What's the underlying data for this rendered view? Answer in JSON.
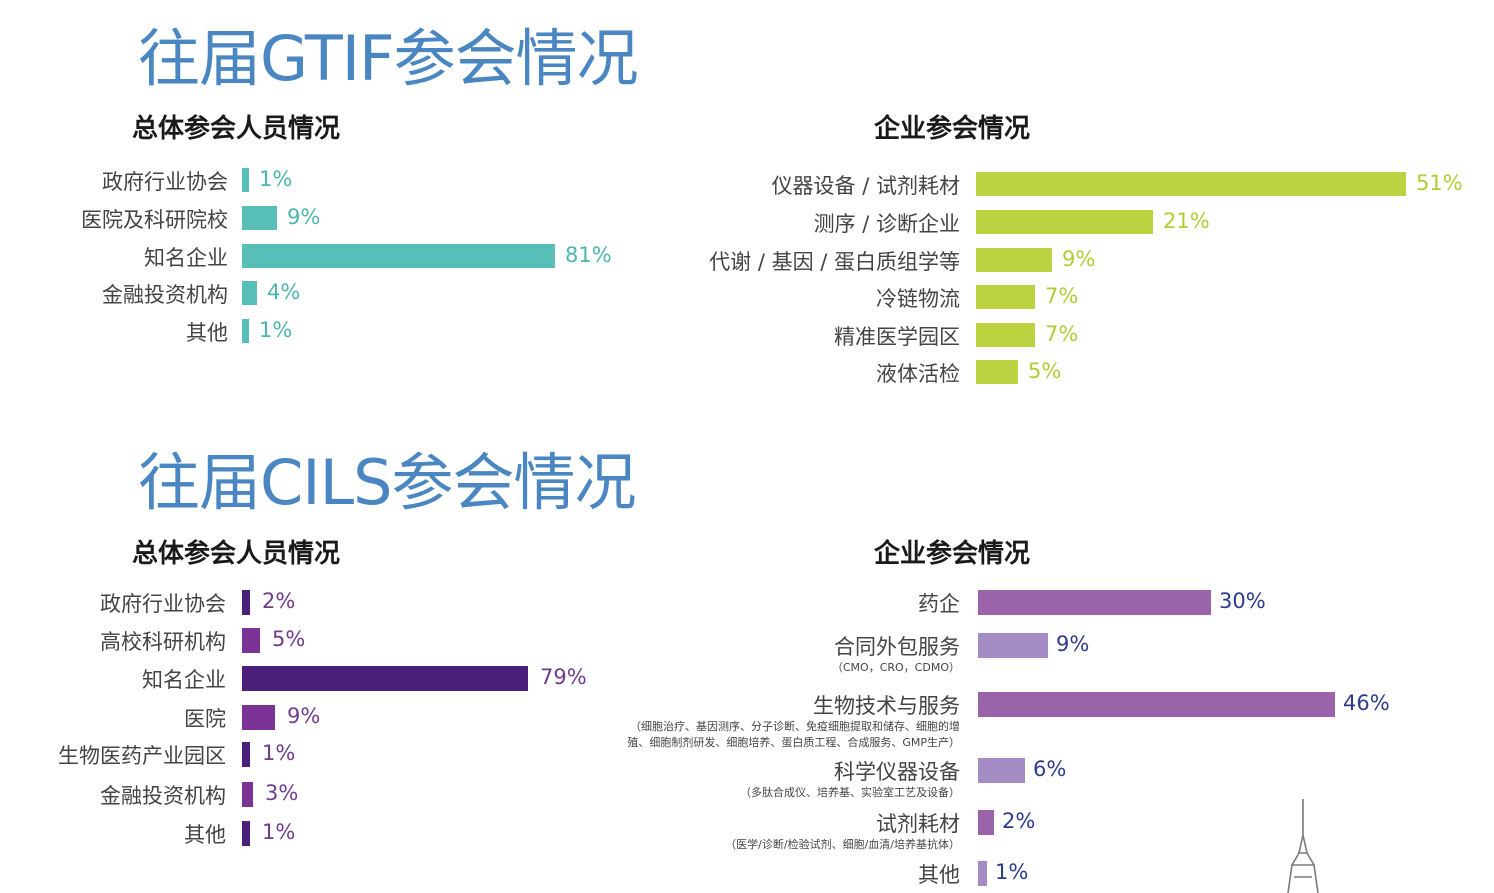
{
  "sections": {
    "gtif_title": "往届GTIF参会情况",
    "cils_title": "往届CILS参会情况"
  },
  "chart_data": [
    {
      "type": "bar",
      "orientation": "horizontal",
      "title": "总体参会人员情况",
      "categories": [
        "政府行业协会",
        "医院及科研院校",
        "知名企业",
        "金融投资机构",
        "其他"
      ],
      "values": [
        1,
        9,
        81,
        4,
        1
      ],
      "value_labels": [
        "1%",
        "9%",
        "81%",
        "4%",
        "1%"
      ],
      "unit": "%",
      "bar_color": "#57bfb7",
      "value_color": "#4db5ad"
    },
    {
      "type": "bar",
      "orientation": "horizontal",
      "title": "企业参会情况",
      "categories": [
        "仪器设备 / 试剂耗材",
        "测序 / 诊断企业",
        "代谢 / 基因 / 蛋白质组学等",
        "冷链物流",
        "精准医学园区",
        "液体活检"
      ],
      "values": [
        51,
        21,
        9,
        7,
        7,
        5
      ],
      "value_labels": [
        "51%",
        "21%",
        "9%",
        "7%",
        "7%",
        "5%"
      ],
      "unit": "%",
      "bar_color": "#bcd241",
      "value_color": "#b3cb37"
    },
    {
      "type": "bar",
      "orientation": "horizontal",
      "title": "总体参会人员情况",
      "categories": [
        "政府行业协会",
        "高校科研机构",
        "知名企业",
        "医院",
        "生物医药产业园区",
        "金融投资机构",
        "其他"
      ],
      "values": [
        2,
        5,
        79,
        9,
        1,
        3,
        1
      ],
      "value_labels": [
        "2%",
        "5%",
        "79%",
        "9%",
        "1%",
        "3%",
        "1%"
      ],
      "unit": "%",
      "bar_colors": [
        "#4b1f7a",
        "#7b3496",
        "#4b1f7a",
        "#7b3496",
        "#4b1f7a",
        "#7b3496",
        "#4b1f7a"
      ],
      "value_color": "#6f3c8e"
    },
    {
      "type": "bar",
      "orientation": "horizontal",
      "title": "企业参会情况",
      "categories": [
        "药企",
        "合同外包服务",
        "生物技术与服务",
        "科学仪器设备",
        "试剂耗材",
        "其他"
      ],
      "notes": [
        "",
        "（CMO，CRO，CDMO）",
        "（细胞治疗、基因测序、分子诊断、免疫细胞提取和储存、细胞的增|殖、细胞制剂研发、细胞培养、蛋白质工程、合成服务、GMP生产）",
        "（多肽合成仪、培养基、实验室工艺及设备）",
        "（医学/诊断/检验试剂、细胞/血清/培养基抗体）",
        ""
      ],
      "values": [
        30,
        9,
        46,
        6,
        2,
        1
      ],
      "value_labels": [
        "30%",
        "9%",
        "46%",
        "6%",
        "2%",
        "1%"
      ],
      "unit": "%",
      "bar_colors": [
        "#9b63aa",
        "#a48bc4",
        "#9b63aa",
        "#a48bc4",
        "#9b63aa",
        "#a48bc4"
      ],
      "value_color": "#2e3a8c"
    }
  ]
}
